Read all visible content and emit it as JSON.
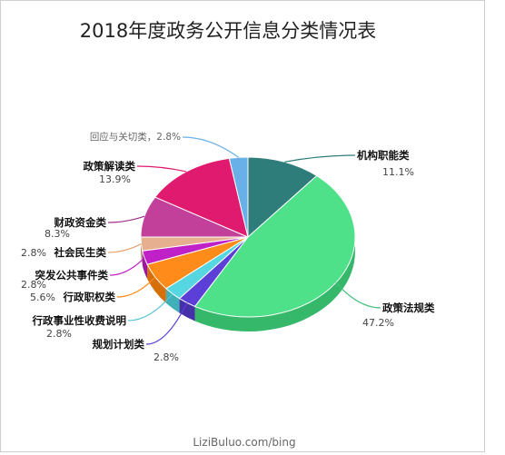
{
  "chart_data": {
    "type": "pie",
    "title": "2018年度政务公开信息分类情况表",
    "slices": [
      {
        "name": "机构职能类",
        "value": 11.1,
        "pct_label": "11.1%",
        "color": "#2e7d7a",
        "side": "#1f5f5c",
        "line": "#2e7d7a"
      },
      {
        "name": "政策法规类",
        "value": 47.2,
        "pct_label": "47.2%",
        "color": "#4fe08a",
        "side": "#35b86a",
        "line": "#3fbf7a"
      },
      {
        "name": "规划计划类",
        "value": 2.8,
        "pct_label": "2.8%",
        "color": "#5b3fd6",
        "side": "#4530a8",
        "line": "#5b3fd6"
      },
      {
        "name": "行政事业性收费说明",
        "value": 2.8,
        "pct_label": "2.8%",
        "color": "#56d6e0",
        "side": "#3fb0b8",
        "line": "#56c6d0"
      },
      {
        "name": "行政职权类",
        "value": 5.6,
        "pct_label": "5.6%",
        "color": "#ff8c1a",
        "side": "#d46f0a",
        "line": "#ff8c1a"
      },
      {
        "name": "突发公共事件类",
        "value": 2.8,
        "pct_label": "2.8%",
        "color": "#c020c8",
        "side": "#9a18a0",
        "line": "#c020c8"
      },
      {
        "name": "社会民生类",
        "value": 2.8,
        "pct_label": "2.8%",
        "color": "#e6b090",
        "side": "#c08a6a",
        "line": "#e6a070"
      },
      {
        "name": "财政资金类",
        "value": 8.3,
        "pct_label": "8.3%",
        "color": "#c2409a",
        "side": "#9a2f7a",
        "line": "#a0308a"
      },
      {
        "name": "政策解读类",
        "value": 13.9,
        "pct_label": "13.9%",
        "color": "#e01a6e",
        "side": "#b01055",
        "line": "#e01a6e"
      },
      {
        "name": "回应与关切类",
        "value": 2.8,
        "pct_label": "2.8%",
        "color": "#6ab0e8",
        "side": "#4a8ec4",
        "line": "#6ab0e8"
      }
    ],
    "callout_for_last": "回应与关切类，2.8%"
  },
  "footer": "LiziBuluo.com/bing"
}
